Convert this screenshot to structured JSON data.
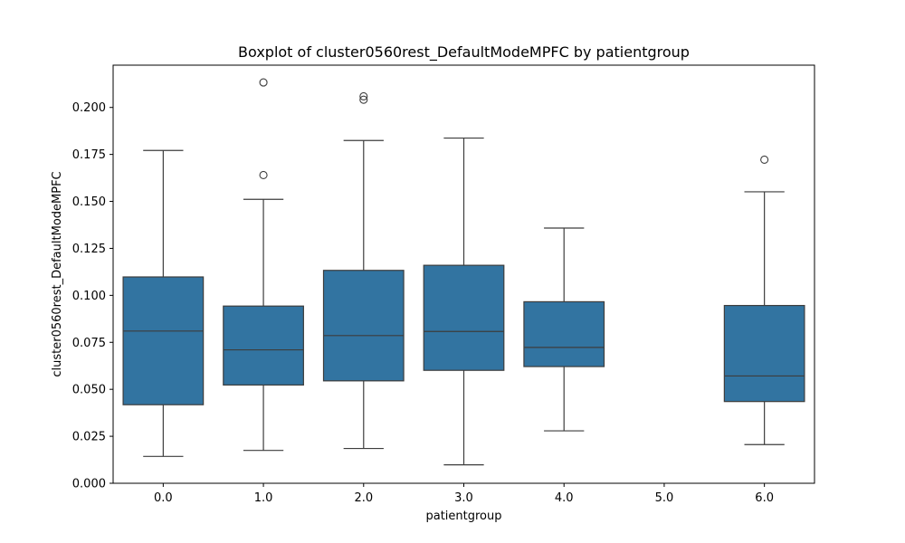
{
  "chart_data": {
    "type": "box",
    "title": "Boxplot of cluster0560rest_DefaultModeMPFC by patientgroup",
    "xlabel": "patientgroup",
    "ylabel": "cluster0560rest_DefaultModeMPFC",
    "categories": [
      "0.0",
      "1.0",
      "2.0",
      "3.0",
      "4.0",
      "5.0",
      "6.0"
    ],
    "yticks": [
      "0.000",
      "0.025",
      "0.050",
      "0.075",
      "0.100",
      "0.125",
      "0.150",
      "0.175",
      "0.200"
    ],
    "ylim": [
      0.0,
      0.2225
    ],
    "box_color": "#3274a1",
    "line_color": "#3d3d3d",
    "boxes": [
      {
        "category": "0.0",
        "whisker_low": 0.0143,
        "q1": 0.0418,
        "median": 0.081,
        "q3": 0.1098,
        "whisker_high": 0.1771,
        "outliers": []
      },
      {
        "category": "1.0",
        "whisker_low": 0.0175,
        "q1": 0.0523,
        "median": 0.071,
        "q3": 0.0943,
        "whisker_high": 0.1511,
        "outliers": [
          0.2133,
          0.164
        ]
      },
      {
        "category": "2.0",
        "whisker_low": 0.0185,
        "q1": 0.0545,
        "median": 0.0786,
        "q3": 0.1133,
        "whisker_high": 0.1824,
        "outliers": [
          0.2059,
          0.2041
        ]
      },
      {
        "category": "3.0",
        "whisker_low": 0.0098,
        "q1": 0.0601,
        "median": 0.0808,
        "q3": 0.116,
        "whisker_high": 0.1837,
        "outliers": []
      },
      {
        "category": "4.0",
        "whisker_low": 0.0279,
        "q1": 0.0621,
        "median": 0.0723,
        "q3": 0.0966,
        "whisker_high": 0.1358,
        "outliers": []
      },
      {
        "category": "5.0"
      },
      {
        "category": "6.0",
        "whisker_low": 0.0206,
        "q1": 0.0435,
        "median": 0.0571,
        "q3": 0.0946,
        "whisker_high": 0.1551,
        "outliers": [
          0.1722
        ]
      }
    ]
  }
}
